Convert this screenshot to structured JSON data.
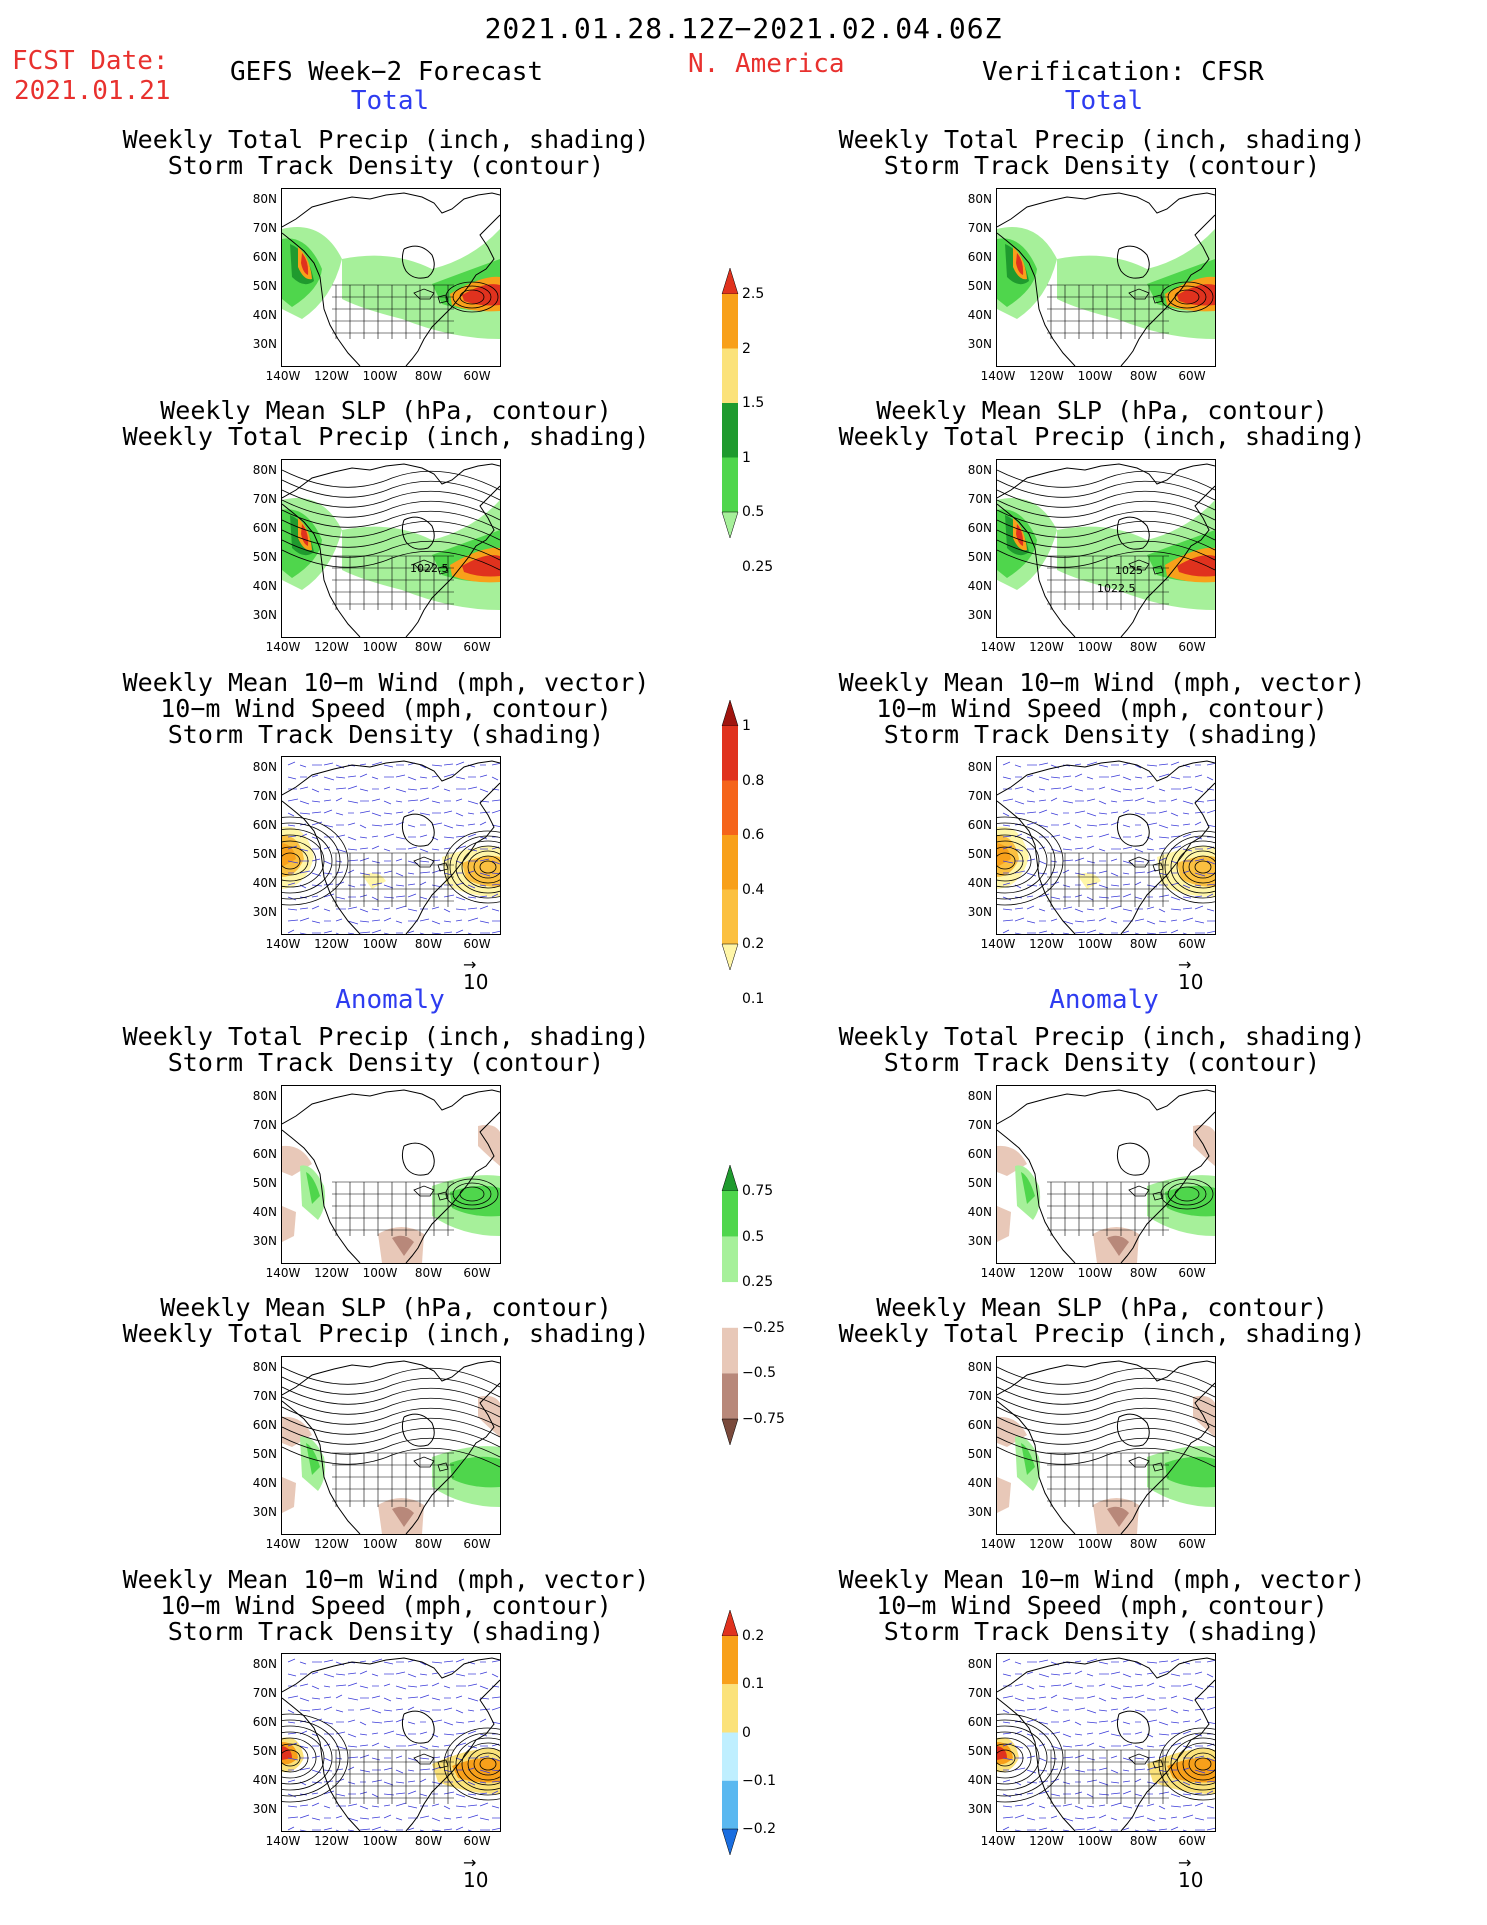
{
  "header": {
    "title": "2021.01.28.12Z−2021.02.04.06Z",
    "fcst_label": "FCST Date:",
    "fcst_date": "2021.01.21",
    "left_title": "GEFS Week−2 Forecast",
    "region": "N. America",
    "right_title": "Verification: CFSR"
  },
  "sections": {
    "total": "Total",
    "anomaly": "Anomaly"
  },
  "panel_titles": {
    "precip_storm": [
      "Weekly Total Precip (inch, shading)",
      "Storm Track Density (contour)"
    ],
    "slp_precip": [
      "Weekly Mean SLP (hPa, contour)",
      "Weekly Total Precip (inch, shading)"
    ],
    "wind_storm": [
      "Weekly Mean 10−m Wind (mph, vector)",
      "10−m Wind Speed (mph, contour)",
      "Storm Track Density (shading)"
    ]
  },
  "axes": {
    "lat_labels": [
      "80N",
      "70N",
      "60N",
      "50N",
      "40N",
      "30N"
    ],
    "lon_labels": [
      "140W",
      "120W",
      "100W",
      "80W",
      "60W"
    ]
  },
  "contour_labels": {
    "fcst_slp": "1022.5",
    "verif_slp_a": "1025",
    "verif_slp_b": "1022.5"
  },
  "vector_ref": "10",
  "colorbars": {
    "precip_total": {
      "labels": [
        "2.5",
        "2",
        "1.5",
        "1",
        "0.5",
        "0.25"
      ],
      "colors": [
        "#e0321e",
        "#f8a01a",
        "#fbe27a",
        "#1f9a2e",
        "#4fd64c",
        "#a6f09a"
      ]
    },
    "storm_total": {
      "labels": [
        "1",
        "0.8",
        "0.6",
        "0.4",
        "0.2",
        "0.1"
      ],
      "colors": [
        "#a0140e",
        "#e0321e",
        "#f5641a",
        "#f8a01a",
        "#fbc040",
        "#fff6a8"
      ]
    },
    "precip_anom": {
      "labels": [
        "0.75",
        "0.5",
        "0.25",
        "−0.25",
        "−0.5",
        "−0.75"
      ],
      "colors": [
        "#1f9a2e",
        "#4fd64c",
        "#a6f09a",
        "#ffffff",
        "#e8c8b8",
        "#b8887a",
        "#7a4a3c"
      ]
    },
    "storm_anom": {
      "labels": [
        "0.2",
        "0.1",
        "0",
        "−0.1",
        "−0.2"
      ],
      "colors": [
        "#e0321e",
        "#f8a01a",
        "#fbe27a",
        "#bfefff",
        "#5ab8f0",
        "#1a6ee0"
      ]
    }
  }
}
